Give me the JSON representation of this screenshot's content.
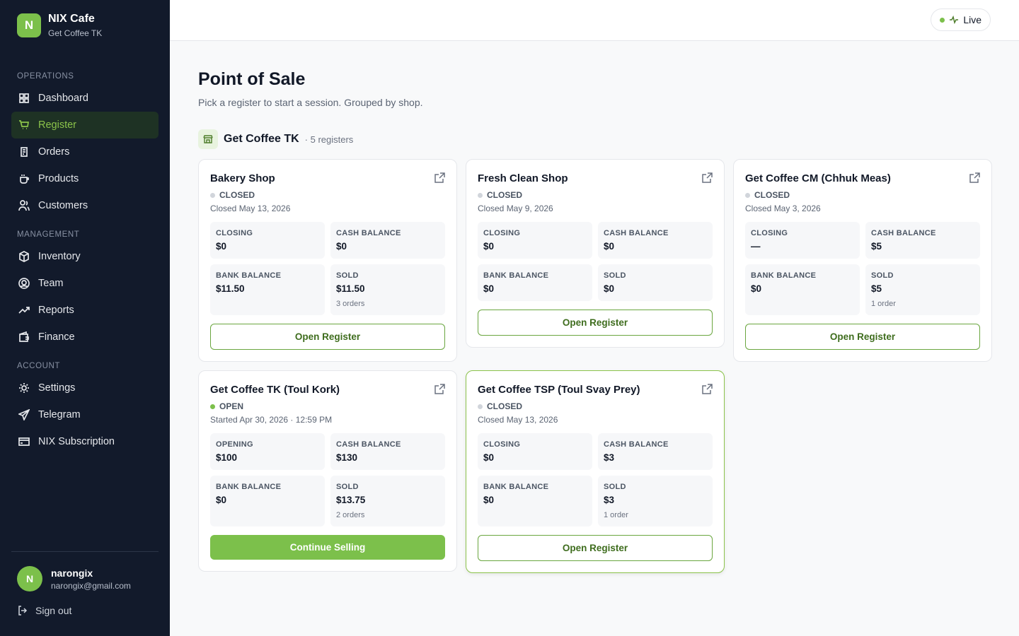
{
  "sidebar": {
    "brand": {
      "initial": "N",
      "name": "NIX Cafe",
      "shop": "Get Coffee TK"
    },
    "sections": [
      {
        "title": "OPERATIONS",
        "items": [
          {
            "label": "Dashboard"
          },
          {
            "label": "Register",
            "active": true
          },
          {
            "label": "Orders"
          },
          {
            "label": "Products"
          },
          {
            "label": "Customers"
          }
        ]
      },
      {
        "title": "MANAGEMENT",
        "items": [
          {
            "label": "Inventory"
          },
          {
            "label": "Team"
          },
          {
            "label": "Reports"
          },
          {
            "label": "Finance"
          }
        ]
      },
      {
        "title": "ACCOUNT",
        "items": [
          {
            "label": "Settings"
          },
          {
            "label": "Telegram"
          },
          {
            "label": "NIX Subscription"
          }
        ]
      }
    ],
    "user": {
      "initial": "N",
      "name": "narongix",
      "email": "narongix@gmail.com"
    },
    "sign_out": "Sign out"
  },
  "header": {
    "status": "Live"
  },
  "page": {
    "title": "Point of Sale",
    "subtitle": "Pick a register to start a session. Grouped by shop."
  },
  "shop": {
    "name": "Get Coffee TK",
    "count": "· 5 registers"
  },
  "registers": [
    {
      "name": "Bakery Shop",
      "status": "CLOSED",
      "open": false,
      "date": "Closed May 13, 2026",
      "stats": [
        {
          "label": "CLOSING",
          "value": "$0"
        },
        {
          "label": "CASH BALANCE",
          "value": "$0"
        },
        {
          "label": "BANK BALANCE",
          "value": "$11.50"
        },
        {
          "label": "SOLD",
          "value": "$11.50",
          "note": "3 orders"
        }
      ],
      "action": "Open Register"
    },
    {
      "name": "Fresh Clean Shop",
      "status": "CLOSED",
      "open": false,
      "date": "Closed May 9, 2026",
      "stats": [
        {
          "label": "CLOSING",
          "value": "$0"
        },
        {
          "label": "CASH BALANCE",
          "value": "$0"
        },
        {
          "label": "BANK BALANCE",
          "value": "$0"
        },
        {
          "label": "SOLD",
          "value": "$0"
        }
      ],
      "action": "Open Register"
    },
    {
      "name": "Get Coffee CM (Chhuk Meas)",
      "status": "CLOSED",
      "open": false,
      "date": "Closed May 3, 2026",
      "stats": [
        {
          "label": "CLOSING",
          "value": "—"
        },
        {
          "label": "CASH BALANCE",
          "value": "$5"
        },
        {
          "label": "BANK BALANCE",
          "value": "$0"
        },
        {
          "label": "SOLD",
          "value": "$5",
          "note": "1 order"
        }
      ],
      "action": "Open Register"
    },
    {
      "name": "Get Coffee TK (Toul Kork)",
      "status": "OPEN",
      "open": true,
      "date": "Started Apr 30, 2026 · 12:59 PM",
      "stats": [
        {
          "label": "OPENING",
          "value": "$100"
        },
        {
          "label": "CASH BALANCE",
          "value": "$130"
        },
        {
          "label": "BANK BALANCE",
          "value": "$0"
        },
        {
          "label": "SOLD",
          "value": "$13.75",
          "note": "2 orders"
        }
      ],
      "action": "Continue Selling"
    },
    {
      "name": "Get Coffee TSP (Toul Svay Prey)",
      "status": "CLOSED",
      "open": false,
      "highlighted": true,
      "date": "Closed May 13, 2026",
      "stats": [
        {
          "label": "CLOSING",
          "value": "$0"
        },
        {
          "label": "CASH BALANCE",
          "value": "$3"
        },
        {
          "label": "BANK BALANCE",
          "value": "$0"
        },
        {
          "label": "SOLD",
          "value": "$3",
          "note": "1 order"
        }
      ],
      "action": "Open Register"
    }
  ]
}
